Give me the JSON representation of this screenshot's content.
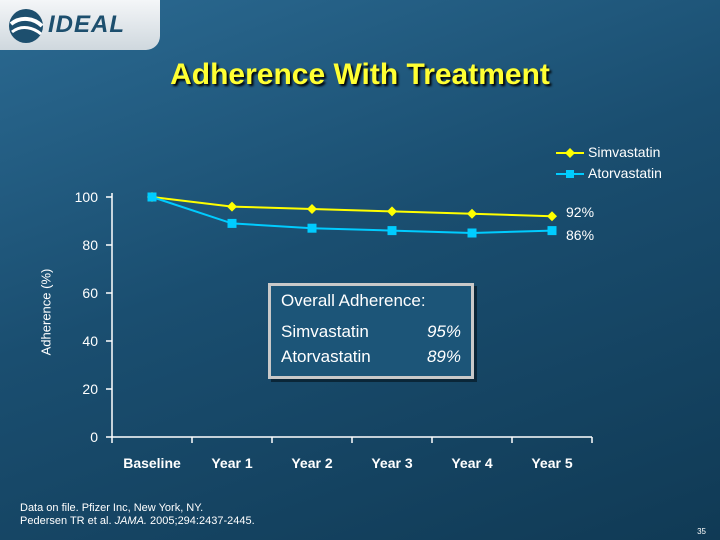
{
  "logo": {
    "text": "IDEAL"
  },
  "slide": {
    "title": "Adherence With Treatment",
    "footnote_line1": "Data on file.  Pfizer Inc, New York, NY.",
    "footnote_line2_pre": "Pedersen TR et al. ",
    "footnote_line2_journal": "JAMA.",
    "footnote_line2_post": " 2005;294:2437-2445.",
    "page_number": "35"
  },
  "chart_data": {
    "type": "line",
    "title": "",
    "xlabel": "",
    "ylabel": "Adherence (%)",
    "categories": [
      "Baseline",
      "Year 1",
      "Year 2",
      "Year 3",
      "Year 4",
      "Year 5"
    ],
    "ylim": [
      0,
      100
    ],
    "yticks": [
      0,
      20,
      40,
      60,
      80,
      100
    ],
    "grid": false,
    "legend_position": "top-right",
    "series": [
      {
        "name": "Simvastatin",
        "values": [
          100,
          96,
          95,
          94,
          93,
          92
        ],
        "color": "#ffff00",
        "marker": "diamond",
        "end_label": "92%"
      },
      {
        "name": "Atorvastatin",
        "values": [
          100,
          89,
          87,
          86,
          85,
          86
        ],
        "color": "#00ccff",
        "marker": "square",
        "end_label": "86%"
      }
    ],
    "annotation": {
      "heading": "Overall Adherence:",
      "rows": [
        {
          "name": "Simvastatin",
          "value": "95%"
        },
        {
          "name": "Atorvastatin",
          "value": "89%"
        }
      ]
    }
  }
}
